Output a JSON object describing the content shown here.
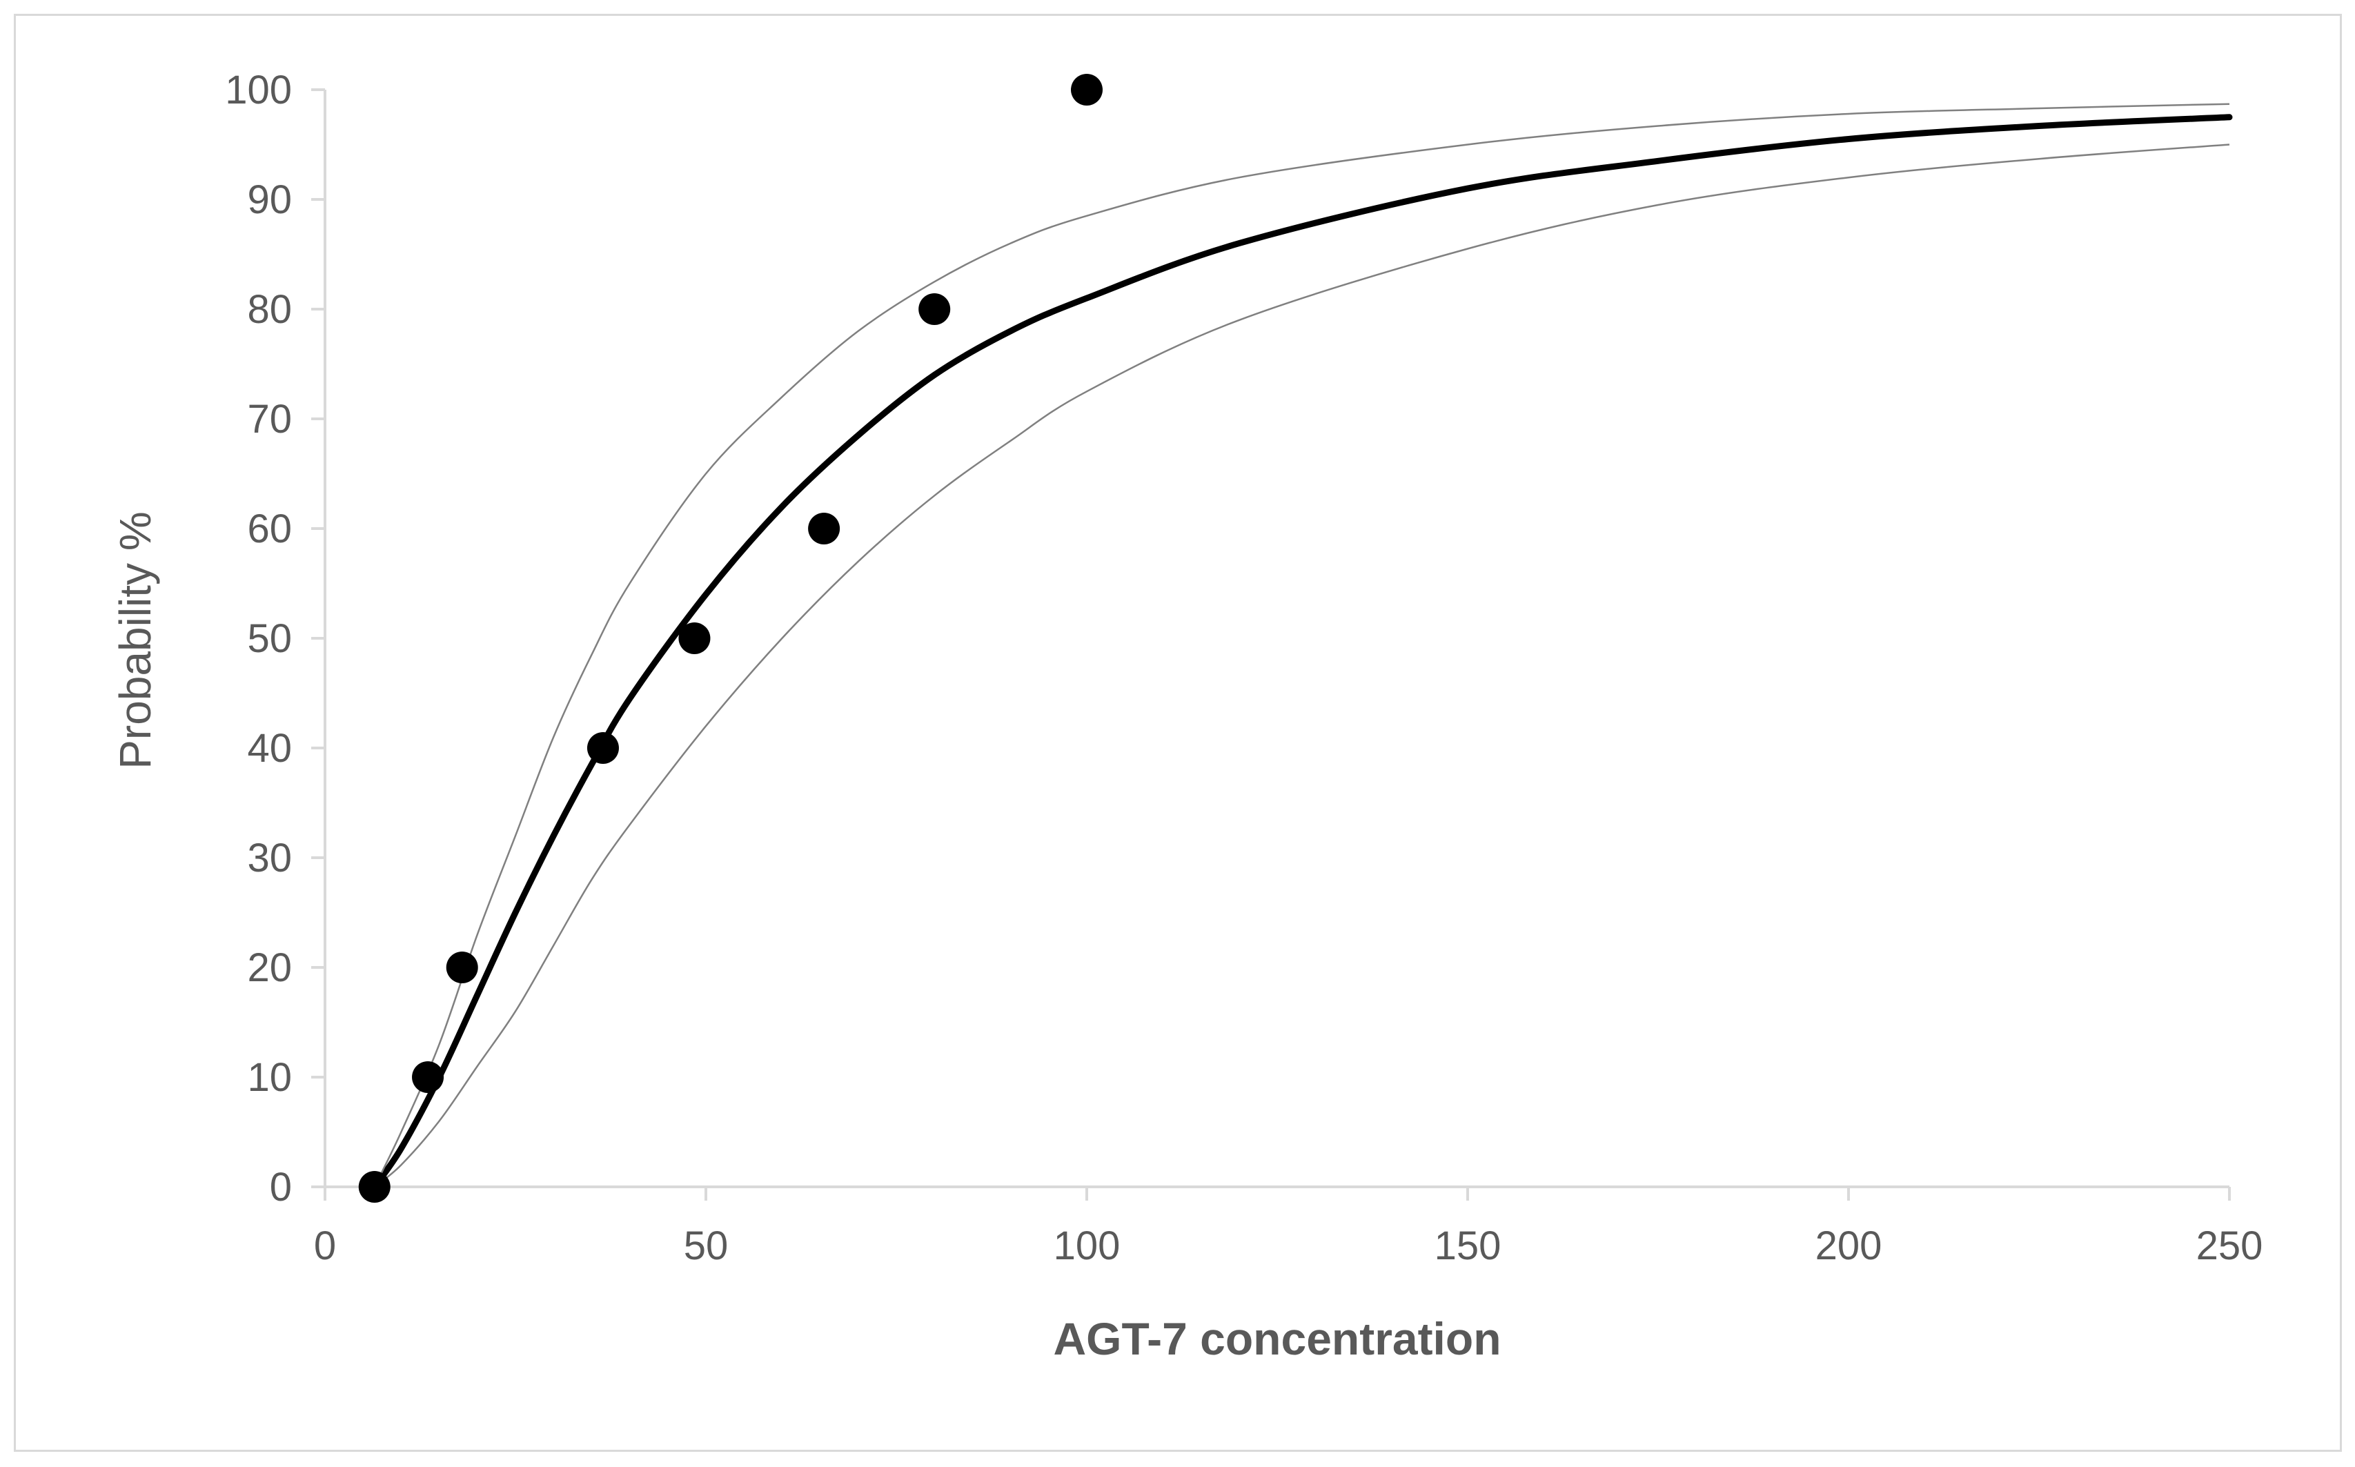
{
  "chart_data": {
    "type": "scatter",
    "title": "",
    "xlabel": "AGT-7 concentration",
    "ylabel": "Probability %",
    "xlim": [
      0,
      250
    ],
    "ylim": [
      0,
      100
    ],
    "x_ticks": [
      "0",
      "50",
      "100",
      "150",
      "200",
      "250"
    ],
    "y_ticks": [
      "0",
      "10",
      "20",
      "30",
      "40",
      "50",
      "60",
      "70",
      "80",
      "90",
      "100"
    ],
    "grid": false,
    "legend": "none",
    "colors": {
      "axis": "#d9d9d9",
      "text": "#595959",
      "marks": "#000000",
      "ci": "#808080"
    },
    "series": [
      {
        "kind": "points",
        "x": [
          6.5,
          13.5,
          18,
          36.5,
          48.5,
          65.5,
          80,
          100
        ],
        "y": [
          0,
          10,
          20,
          40,
          50,
          60,
          80,
          100
        ]
      },
      {
        "kind": "fitted-curve",
        "x": [
          6.5,
          10,
          15,
          20,
          25,
          30,
          35,
          40,
          50,
          60,
          70,
          80,
          90,
          100,
          120,
          150,
          175,
          200,
          225,
          250
        ],
        "y": [
          0,
          3.5,
          10,
          17.5,
          25,
          32,
          38.5,
          44.5,
          54,
          62,
          68.5,
          74,
          78,
          81,
          86,
          91,
          93.5,
          95.5,
          96.7,
          97.5
        ]
      },
      {
        "kind": "upper-confidence-bound",
        "x": [
          6.5,
          10,
          15,
          20,
          25,
          30,
          35,
          40,
          50,
          60,
          70,
          80,
          90,
          100,
          120,
          150,
          175,
          200,
          225,
          250
        ],
        "y": [
          0,
          5,
          13,
          23,
          32,
          41,
          48.5,
          55,
          65,
          72,
          78,
          82.5,
          86,
          88.5,
          92,
          95,
          96.7,
          97.8,
          98.3,
          98.7
        ]
      },
      {
        "kind": "lower-confidence-bound",
        "x": [
          6.5,
          10,
          15,
          20,
          25,
          30,
          35,
          40,
          50,
          60,
          70,
          80,
          90,
          100,
          120,
          150,
          175,
          200,
          225,
          250
        ],
        "y": [
          0,
          2,
          6,
          11,
          16,
          22,
          28,
          33,
          42,
          50,
          57,
          63,
          68,
          72.5,
          79,
          85.5,
          89.5,
          92,
          93.7,
          95
        ]
      }
    ]
  }
}
